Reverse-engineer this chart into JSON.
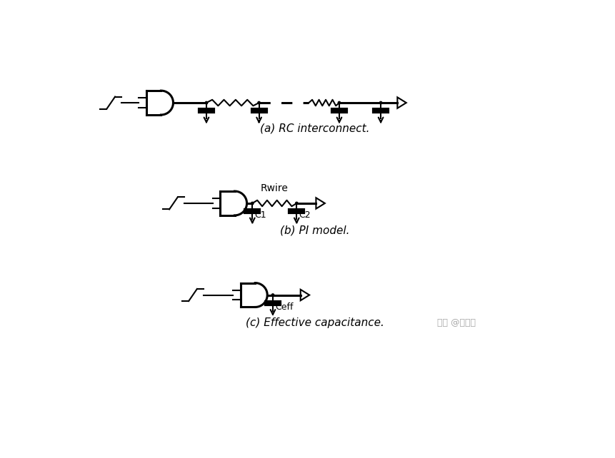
{
  "title_a": "(a) RC interconnect.",
  "title_b": "(b) PI model.",
  "title_c": "(c) Effective capacitance.",
  "watermark": "知乎 @赵俊军",
  "bg_color": "#ffffff",
  "line_color": "#000000",
  "lw": 1.5,
  "lw_thick": 2.2,
  "lw_cap": 3.0
}
